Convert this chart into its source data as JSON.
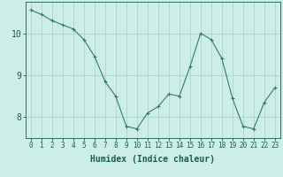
{
  "x": [
    0,
    1,
    2,
    3,
    4,
    5,
    6,
    7,
    8,
    9,
    10,
    11,
    12,
    13,
    14,
    15,
    16,
    17,
    18,
    19,
    20,
    21,
    22,
    23
  ],
  "y": [
    10.55,
    10.45,
    10.3,
    10.2,
    10.1,
    9.85,
    9.45,
    8.85,
    8.5,
    7.78,
    7.72,
    8.1,
    8.25,
    8.55,
    8.5,
    9.2,
    10.0,
    9.85,
    9.4,
    8.45,
    7.78,
    7.72,
    8.35,
    8.7
  ],
  "line_color": "#2e7d6e",
  "marker": "+",
  "bg_color": "#cdeee8",
  "grid_color": "#aed4cc",
  "xlabel": "Humidex (Indice chaleur)",
  "xlim": [
    -0.5,
    23.5
  ],
  "ylim": [
    7.5,
    10.75
  ],
  "yticks": [
    8,
    9,
    10
  ],
  "xticks": [
    0,
    1,
    2,
    3,
    4,
    5,
    6,
    7,
    8,
    9,
    10,
    11,
    12,
    13,
    14,
    15,
    16,
    17,
    18,
    19,
    20,
    21,
    22,
    23
  ],
  "font_color": "#1a5c52",
  "tick_fontsize": 5.5,
  "label_fontsize": 7
}
